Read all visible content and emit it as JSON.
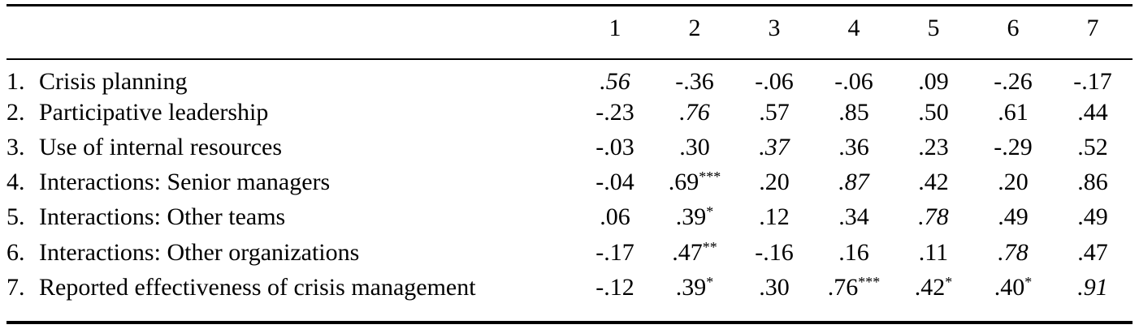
{
  "columns": [
    "1",
    "2",
    "3",
    "4",
    "5",
    "6",
    "7"
  ],
  "rows": [
    {
      "num": "1.",
      "label": "Crisis planning",
      "cells": [
        {
          "v": ".56",
          "sig": "",
          "diag": true
        },
        {
          "v": "-.36",
          "sig": "",
          "diag": false
        },
        {
          "v": "-.06",
          "sig": "",
          "diag": false
        },
        {
          "v": "-.06",
          "sig": "",
          "diag": false
        },
        {
          "v": ".09",
          "sig": "",
          "diag": false
        },
        {
          "v": "-.26",
          "sig": "",
          "diag": false
        },
        {
          "v": "-.17",
          "sig": "",
          "diag": false
        }
      ]
    },
    {
      "num": "2.",
      "label": "Participative leadership",
      "cells": [
        {
          "v": "-.23",
          "sig": "",
          "diag": false
        },
        {
          "v": ".76",
          "sig": "",
          "diag": true
        },
        {
          "v": ".57",
          "sig": "",
          "diag": false
        },
        {
          "v": ".85",
          "sig": "",
          "diag": false
        },
        {
          "v": ".50",
          "sig": "",
          "diag": false
        },
        {
          "v": ".61",
          "sig": "",
          "diag": false
        },
        {
          "v": ".44",
          "sig": "",
          "diag": false
        }
      ]
    },
    {
      "num": "3.",
      "label": "Use of internal resources",
      "cells": [
        {
          "v": "-.03",
          "sig": "",
          "diag": false
        },
        {
          "v": ".30",
          "sig": "",
          "diag": false
        },
        {
          "v": ".37",
          "sig": "",
          "diag": true
        },
        {
          "v": ".36",
          "sig": "",
          "diag": false
        },
        {
          "v": ".23",
          "sig": "",
          "diag": false
        },
        {
          "v": "-.29",
          "sig": "",
          "diag": false
        },
        {
          "v": ".52",
          "sig": "",
          "diag": false
        }
      ]
    },
    {
      "num": "4.",
      "label": "Interactions: Senior managers",
      "cells": [
        {
          "v": "-.04",
          "sig": "",
          "diag": false
        },
        {
          "v": ".69",
          "sig": "***",
          "diag": false
        },
        {
          "v": ".20",
          "sig": "",
          "diag": false
        },
        {
          "v": ".87",
          "sig": "",
          "diag": true
        },
        {
          "v": ".42",
          "sig": "",
          "diag": false
        },
        {
          "v": ".20",
          "sig": "",
          "diag": false
        },
        {
          "v": ".86",
          "sig": "",
          "diag": false
        }
      ]
    },
    {
      "num": "5.",
      "label": "Interactions: Other teams",
      "cells": [
        {
          "v": ".06",
          "sig": "",
          "diag": false
        },
        {
          "v": ".39",
          "sig": "*",
          "diag": false
        },
        {
          "v": ".12",
          "sig": "",
          "diag": false
        },
        {
          "v": ".34",
          "sig": "",
          "diag": false
        },
        {
          "v": ".78",
          "sig": "",
          "diag": true
        },
        {
          "v": ".49",
          "sig": "",
          "diag": false
        },
        {
          "v": ".49",
          "sig": "",
          "diag": false
        }
      ]
    },
    {
      "num": "6.",
      "label": "Interactions: Other organizations",
      "cells": [
        {
          "v": "-.17",
          "sig": "",
          "diag": false
        },
        {
          "v": ".47",
          "sig": "**",
          "diag": false
        },
        {
          "v": "-.16",
          "sig": "",
          "diag": false
        },
        {
          "v": ".16",
          "sig": "",
          "diag": false
        },
        {
          "v": ".11",
          "sig": "",
          "diag": false
        },
        {
          "v": ".78",
          "sig": "",
          "diag": true
        },
        {
          "v": ".47",
          "sig": "",
          "diag": false
        }
      ]
    },
    {
      "num": "7.",
      "label": "Reported effectiveness of crisis management",
      "cells": [
        {
          "v": "-.12",
          "sig": "",
          "diag": false
        },
        {
          "v": ".39",
          "sig": "*",
          "diag": false
        },
        {
          "v": ".30",
          "sig": "",
          "diag": false
        },
        {
          "v": ".76",
          "sig": "***",
          "diag": false
        },
        {
          "v": ".42",
          "sig": "*",
          "diag": false
        },
        {
          "v": ".40",
          "sig": "*",
          "diag": false
        },
        {
          "v": ".91",
          "sig": "",
          "diag": true
        }
      ]
    }
  ]
}
